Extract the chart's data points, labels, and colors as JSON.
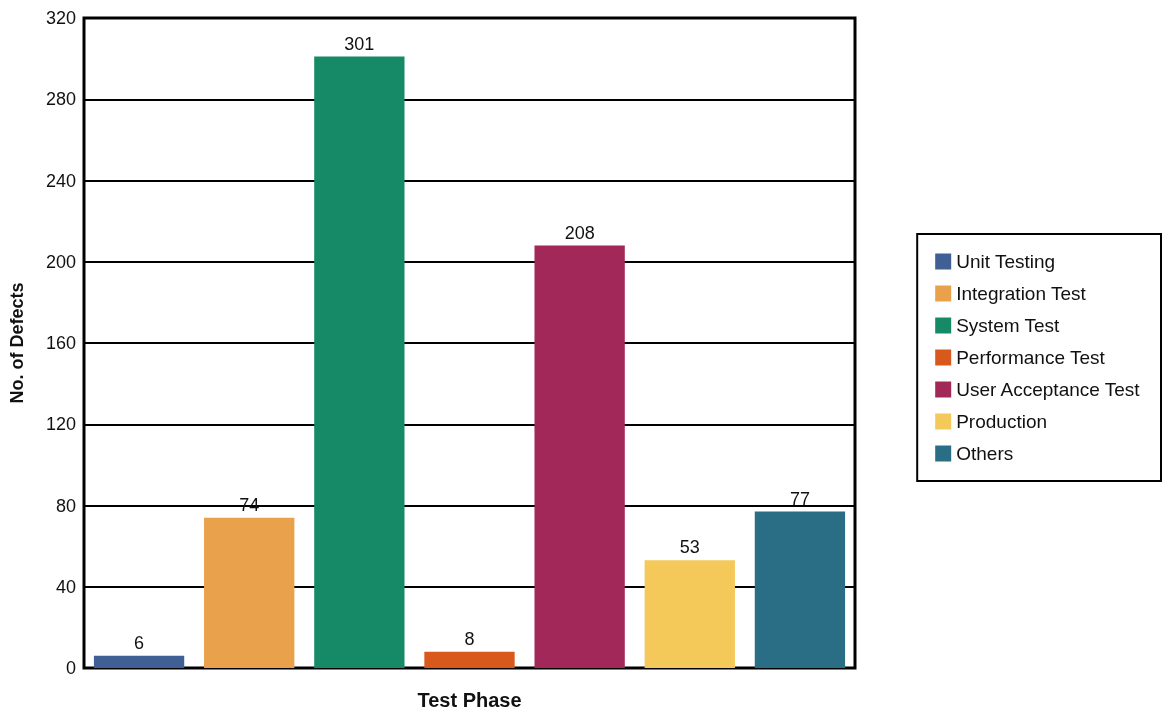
{
  "chart_data": {
    "type": "bar",
    "xlabel": "Test Phase",
    "ylabel": "No. of Defects",
    "categories": [
      null,
      null,
      null,
      null,
      null,
      null,
      null
    ],
    "series": [
      {
        "name": "Unit Testing",
        "color": "#3f5f95",
        "values": [
          6,
          null,
          null,
          null,
          null,
          null,
          null
        ]
      },
      {
        "name": "Integration Test",
        "color": "#e9a14c",
        "values": [
          null,
          74,
          null,
          null,
          null,
          null,
          null
        ]
      },
      {
        "name": "System Test",
        "color": "#168a66",
        "values": [
          null,
          null,
          301,
          null,
          null,
          null,
          null
        ]
      },
      {
        "name": "Performance Test",
        "color": "#d9581c",
        "values": [
          null,
          null,
          null,
          8,
          null,
          null,
          null
        ]
      },
      {
        "name": "User Acceptance Test",
        "color": "#a3285a",
        "values": [
          null,
          null,
          null,
          null,
          208,
          null,
          null
        ]
      },
      {
        "name": "Production",
        "color": "#f5c85a",
        "values": [
          null,
          null,
          null,
          null,
          null,
          53,
          null
        ]
      },
      {
        "name": "Others",
        "color": "#2a6e86",
        "values": [
          null,
          null,
          null,
          null,
          null,
          null,
          77
        ]
      }
    ],
    "ylim": [
      0,
      320
    ],
    "yticks": [
      0,
      40,
      80,
      120,
      160,
      200,
      240,
      280,
      320
    ],
    "grid": "y",
    "legend": "right",
    "data_labels": true,
    "tick_labels": "y"
  }
}
